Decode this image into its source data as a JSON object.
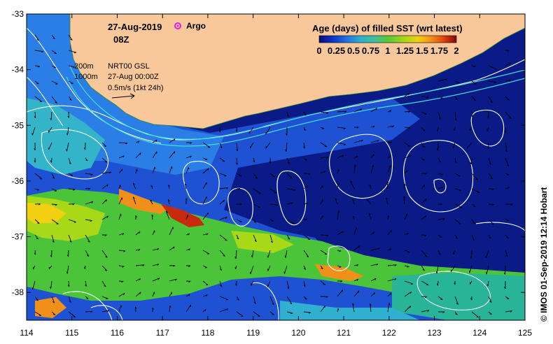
{
  "header": {
    "date": "27-Aug-2019",
    "time": "08Z",
    "argo_label": "Argo"
  },
  "legend": {
    "title": "Age (days) of filled SST (wrt latest)",
    "ticks": [
      "0",
      "0.25",
      "0.5",
      "0.75",
      "1",
      "1.25",
      "1.5",
      "1.75",
      "2"
    ],
    "colors": [
      "#0b0b7a",
      "#0c34c8",
      "#1f6fe6",
      "#2fb0d0",
      "#3fc0a0",
      "#58c83c",
      "#a8d818",
      "#f0d010",
      "#f0901a",
      "#d83a10",
      "#7a0808"
    ]
  },
  "annotations": {
    "depth_200": "200m",
    "depth_1000": "1000m",
    "source": "NRT00 GSL",
    "valid_time": "27-Aug 00:00Z",
    "scale": "0.5m/s (1kt 24h)"
  },
  "axes": {
    "x_ticks": [
      "114",
      "115",
      "116",
      "117",
      "118",
      "119",
      "120",
      "121",
      "122",
      "123",
      "124",
      "125"
    ],
    "y_ticks": [
      "-33",
      "-34",
      "-35",
      "-36",
      "-37",
      "-38"
    ],
    "x_range": [
      114,
      125
    ],
    "y_range": [
      -38.5,
      -33
    ]
  },
  "credit": "© IMOS 01-Sep-2019 12:14 Hobart",
  "colors": {
    "land": "#f9c89a",
    "deep": "#0a1a86",
    "mid": "#1e52d2",
    "coast": "#2a7ee6",
    "contour": "#ffffff",
    "isobath": "#40e0e0"
  }
}
